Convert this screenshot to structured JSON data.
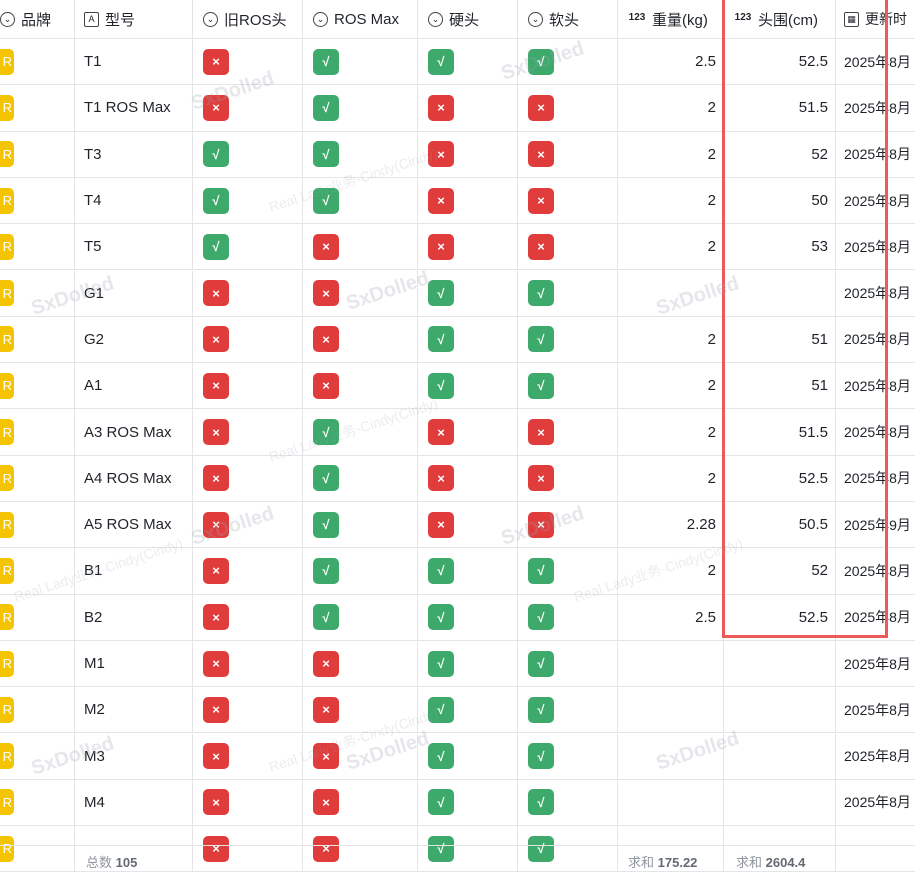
{
  "columns": {
    "brand": "品牌",
    "model": "型号",
    "old_ros": "旧ROS头",
    "ros_max": "ROS Max",
    "hard": "硬头",
    "soft": "软头",
    "weight": "重量(kg)",
    "head": "头围(cm)",
    "updated": "更新时"
  },
  "icons": {
    "brand": "option-circle-icon",
    "model": "text-field-icon",
    "old_ros": "option-circle-icon",
    "ros_max": "option-circle-icon",
    "hard": "option-circle-icon",
    "soft": "option-circle-icon",
    "weight": "number-field-icon",
    "head": "number-field-icon",
    "updated": "calendar-icon"
  },
  "marks": {
    "yes": "√",
    "no": "×",
    "brand_tag": "R"
  },
  "colors": {
    "yes": "#3daa6b",
    "no": "#e03c3c",
    "brand": "#f5c400",
    "highlight": "#ee5a5a"
  },
  "rows": [
    {
      "model": "T1",
      "old_ros": "no",
      "ros_max": "yes",
      "hard": "yes",
      "soft": "yes",
      "weight": "2.5",
      "head": "52.5",
      "updated": "2025年8月"
    },
    {
      "model": "T1 ROS Max",
      "old_ros": "no",
      "ros_max": "yes",
      "hard": "no",
      "soft": "no",
      "weight": "2",
      "head": "51.5",
      "updated": "2025年8月"
    },
    {
      "model": "T3",
      "old_ros": "yes",
      "ros_max": "yes",
      "hard": "no",
      "soft": "no",
      "weight": "2",
      "head": "52",
      "updated": "2025年8月"
    },
    {
      "model": "T4",
      "old_ros": "yes",
      "ros_max": "yes",
      "hard": "no",
      "soft": "no",
      "weight": "2",
      "head": "50",
      "updated": "2025年8月"
    },
    {
      "model": "T5",
      "old_ros": "yes",
      "ros_max": "no",
      "hard": "no",
      "soft": "no",
      "weight": "2",
      "head": "53",
      "updated": "2025年8月"
    },
    {
      "model": "G1",
      "old_ros": "no",
      "ros_max": "no",
      "hard": "yes",
      "soft": "yes",
      "weight": "",
      "head": "",
      "updated": "2025年8月"
    },
    {
      "model": "G2",
      "old_ros": "no",
      "ros_max": "no",
      "hard": "yes",
      "soft": "yes",
      "weight": "2",
      "head": "51",
      "updated": "2025年8月"
    },
    {
      "model": "A1",
      "old_ros": "no",
      "ros_max": "no",
      "hard": "yes",
      "soft": "yes",
      "weight": "2",
      "head": "51",
      "updated": "2025年8月"
    },
    {
      "model": "A3 ROS Max",
      "old_ros": "no",
      "ros_max": "yes",
      "hard": "no",
      "soft": "no",
      "weight": "2",
      "head": "51.5",
      "updated": "2025年8月"
    },
    {
      "model": "A4 ROS Max",
      "old_ros": "no",
      "ros_max": "yes",
      "hard": "no",
      "soft": "no",
      "weight": "2",
      "head": "52.5",
      "updated": "2025年8月"
    },
    {
      "model": "A5 ROS Max",
      "old_ros": "no",
      "ros_max": "yes",
      "hard": "no",
      "soft": "no",
      "weight": "2.28",
      "head": "50.5",
      "updated": "2025年9月"
    },
    {
      "model": "B1",
      "old_ros": "no",
      "ros_max": "yes",
      "hard": "yes",
      "soft": "yes",
      "weight": "2",
      "head": "52",
      "updated": "2025年8月"
    },
    {
      "model": "B2",
      "old_ros": "no",
      "ros_max": "yes",
      "hard": "yes",
      "soft": "yes",
      "weight": "2.5",
      "head": "52.5",
      "updated": "2025年8月"
    },
    {
      "model": "M1",
      "old_ros": "no",
      "ros_max": "no",
      "hard": "yes",
      "soft": "yes",
      "weight": "",
      "head": "",
      "updated": "2025年8月"
    },
    {
      "model": "M2",
      "old_ros": "no",
      "ros_max": "no",
      "hard": "yes",
      "soft": "yes",
      "weight": "",
      "head": "",
      "updated": "2025年8月"
    },
    {
      "model": "M3",
      "old_ros": "no",
      "ros_max": "no",
      "hard": "yes",
      "soft": "yes",
      "weight": "",
      "head": "",
      "updated": "2025年8月"
    },
    {
      "model": "M4",
      "old_ros": "no",
      "ros_max": "no",
      "hard": "yes",
      "soft": "yes",
      "weight": "",
      "head": "",
      "updated": "2025年8月"
    },
    {
      "model": "",
      "old_ros": "no",
      "ros_max": "no",
      "hard": "yes",
      "soft": "yes",
      "weight": "",
      "head": "",
      "updated": ""
    }
  ],
  "footer": {
    "count_label": "总数",
    "count": "105",
    "weight_sum_label": "求和",
    "weight_sum": "175.22",
    "head_sum_label": "求和",
    "head_sum": "2604.4"
  },
  "watermarks": {
    "brand": "SxDolled",
    "text": "Real Lady业务-Cindy(Cindy)"
  }
}
